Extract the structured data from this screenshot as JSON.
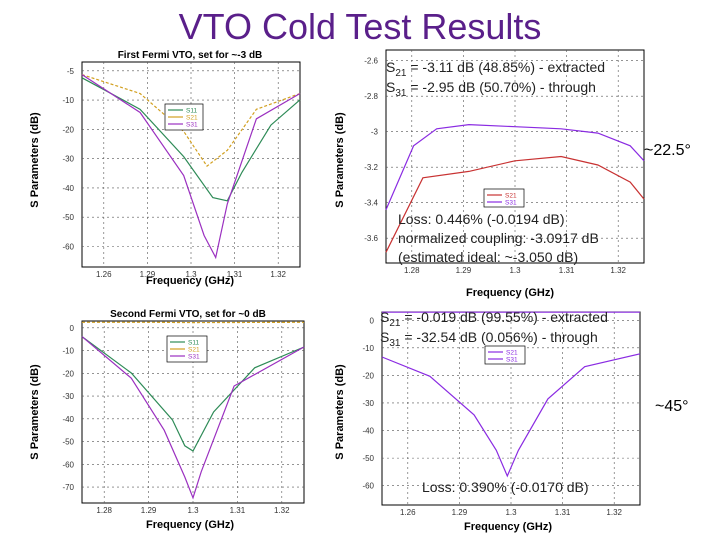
{
  "title": "VTO Cold Test Results",
  "colors": {
    "title": "#5a1f8a",
    "s11": "#2e8b57",
    "s21": "#d2a020",
    "s31": "#9b30c0",
    "red": "#c83232",
    "purple": "#8a2be2"
  },
  "chart_data": [
    {
      "type": "line",
      "title": "First Fermi VTO, set for ~-3 dB",
      "xlabel": "Frequency (GHz)",
      "ylabel": "S Parameters (dB)",
      "xticks": [
        "1.26",
        "1.29",
        "1.3",
        "1.31",
        "1.32"
      ],
      "yticks": [
        "-5",
        "-10",
        "-20",
        "-30",
        "-40",
        "-50",
        "-60"
      ],
      "xlim": [
        1.25,
        1.325
      ],
      "ylim": [
        -65,
        0
      ],
      "legend": [
        "S11",
        "S21",
        "S31"
      ],
      "series": [
        {
          "name": "S11",
          "x": [
            1.25,
            1.27,
            1.285,
            1.295,
            1.3,
            1.305,
            1.315,
            1.325
          ],
          "values": [
            -5,
            -15,
            -30,
            -43,
            -44,
            -35,
            -20,
            -12
          ]
        },
        {
          "name": "S21",
          "x": [
            1.25,
            1.27,
            1.285,
            1.293,
            1.3,
            1.31,
            1.325
          ],
          "values": [
            -4,
            -10,
            -22,
            -33,
            -28,
            -15,
            -10
          ]
        },
        {
          "name": "S31",
          "x": [
            1.25,
            1.27,
            1.285,
            1.292,
            1.296,
            1.3,
            1.31,
            1.325
          ],
          "values": [
            -4,
            -16,
            -36,
            -55,
            -62,
            -45,
            -18,
            -10
          ]
        }
      ]
    },
    {
      "type": "line",
      "xlabel": "Frequency (GHz)",
      "ylabel": "S Parameters (dB)",
      "xticks": [
        "1.28",
        "1.29",
        "1.3",
        "1.31",
        "1.32"
      ],
      "yticks": [
        "-2.6",
        "-2.8",
        "-3",
        "-3.2",
        "-3.4",
        "-3.6"
      ],
      "xlim": [
        1.272,
        1.328
      ],
      "ylim": [
        -3.6,
        -2.6
      ],
      "legend": [
        "S21",
        "S31"
      ],
      "series": [
        {
          "name": "S21",
          "x": [
            1.272,
            1.28,
            1.29,
            1.3,
            1.31,
            1.318,
            1.325,
            1.328
          ],
          "values": [
            -3.55,
            -3.2,
            -3.17,
            -3.12,
            -3.1,
            -3.14,
            -3.22,
            -3.3
          ]
        },
        {
          "name": "S31",
          "x": [
            1.272,
            1.278,
            1.283,
            1.29,
            1.3,
            1.31,
            1.318,
            1.325,
            1.328
          ],
          "values": [
            -3.35,
            -3.05,
            -2.97,
            -2.95,
            -2.96,
            -2.97,
            -2.99,
            -3.05,
            -3.12
          ]
        }
      ]
    },
    {
      "type": "line",
      "title": "Second Fermi VTO, set for ~0 dB",
      "xlabel": "Frequency (GHz)",
      "ylabel": "S Parameters (dB)",
      "xticks": [
        "1.28",
        "1.29",
        "1.3",
        "1.31",
        "1.32"
      ],
      "yticks": [
        "0",
        "-10",
        "-20",
        "-30",
        "-40",
        "-50",
        "-60",
        "-70"
      ],
      "xlim": [
        1.273,
        1.327
      ],
      "ylim": [
        -70,
        0
      ],
      "legend": [
        "S11",
        "S21",
        "S31"
      ],
      "series": [
        {
          "name": "S11",
          "x": [
            1.273,
            1.285,
            1.295,
            1.298,
            1.3,
            1.305,
            1.315,
            1.327
          ],
          "values": [
            -6,
            -20,
            -38,
            -48,
            -50,
            -35,
            -18,
            -10
          ]
        },
        {
          "name": "S21",
          "x": [
            1.273,
            1.29,
            1.3,
            1.327
          ],
          "values": [
            -0.5,
            -0.5,
            -0.6,
            -0.5
          ]
        },
        {
          "name": "S31",
          "x": [
            1.273,
            1.285,
            1.293,
            1.298,
            1.3,
            1.302,
            1.31,
            1.327
          ],
          "values": [
            -6,
            -22,
            -42,
            -60,
            -68,
            -58,
            -25,
            -10
          ]
        }
      ]
    },
    {
      "type": "line",
      "xlabel": "Frequency (GHz)",
      "ylabel": "S Parameters (dB)",
      "xticks": [
        "1.26",
        "1.29",
        "1.3",
        "1.31",
        "1.32"
      ],
      "yticks": [
        "0",
        "-10",
        "-20",
        "-30",
        "-40",
        "-50",
        "-60"
      ],
      "xlim": [
        1.255,
        1.325
      ],
      "ylim": [
        -60,
        0
      ],
      "legend": [
        "S21",
        "S31"
      ],
      "series": [
        {
          "name": "S21",
          "x": [
            1.255,
            1.325
          ],
          "values": [
            -0.05,
            -0.05
          ]
        },
        {
          "name": "S31",
          "x": [
            1.255,
            1.268,
            1.28,
            1.286,
            1.289,
            1.292,
            1.3,
            1.31,
            1.325
          ],
          "values": [
            -14,
            -20,
            -32,
            -43,
            -51,
            -43,
            -27,
            -17,
            -13
          ]
        }
      ]
    }
  ],
  "annotations": {
    "tr_s21_a": "S",
    "tr_s21_sub": "21",
    "tr_s21_b": " = -3.11 dB (48.85%) - extracted",
    "tr_s31_a": "S",
    "tr_s31_sub": "31",
    "tr_s31_b": " = -2.95 dB (50.70%) - through",
    "tr_phase": "~22.5°",
    "tr_loss1": "Loss: 0.446% (-0.0194 dB)",
    "tr_loss2": "normalized coupling: -3.0917 dB",
    "tr_loss3": "(estimated ideal: ~-3.050 dB)",
    "br_s21_a": "S",
    "br_s21_sub": "21",
    "br_s21_b": " = -0.019 dB (99.55%) - extracted",
    "br_s31_a": "S",
    "br_s31_sub": "31",
    "br_s31_b": " = -32.54 dB (0.056%) - through",
    "br_phase": "~45°",
    "br_loss": "Loss: 0.390% (-0.0170 dB)"
  }
}
